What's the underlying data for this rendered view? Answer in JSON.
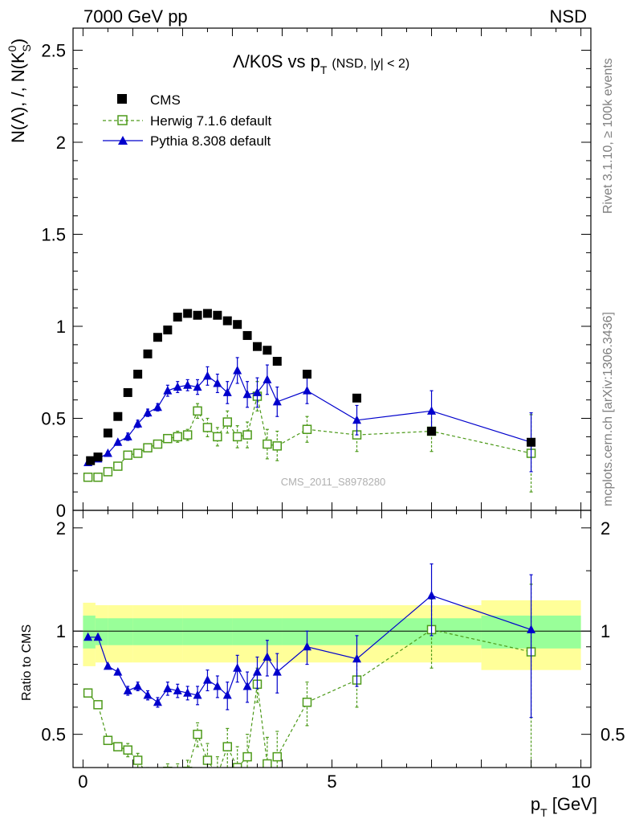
{
  "header": {
    "left": "7000 GeV pp",
    "right": "NSD"
  },
  "side_text": {
    "top": "Rivet 3.1.10, ≥ 100k events",
    "bottom": "mcplots.cern.ch [arXiv:1306.3436]"
  },
  "watermark": "CMS_2011_S8978280",
  "title": {
    "main": "Λ/K0S vs p",
    "sub": "T",
    "paren": "(NSD, |y| < 2)"
  },
  "ylabel": {
    "pre": "N(Λ), /, N(K",
    "sup": "0",
    "sub": "S",
    "post": ")"
  },
  "ratio_ylabel": "Ratio to CMS",
  "xlabel": {
    "pre": "p",
    "sub": "T",
    "post": " [GeV]"
  },
  "colors": {
    "cms": "#000000",
    "herwig": "#4d9a1a",
    "pythia": "#0000cc",
    "band_inner": "#99ff99",
    "band_outer": "#ffff99"
  },
  "chart_data": [
    {
      "type": "scatter",
      "xlim": [
        -0.2,
        10.2
      ],
      "ylim": [
        0,
        2.62
      ],
      "yticks": [
        0,
        0.5,
        1,
        1.5,
        2,
        2.5
      ],
      "ytick_labels": [
        "0",
        "0.5",
        "1",
        "1.5",
        "2",
        "2.5"
      ],
      "series": [
        {
          "name": "CMS",
          "x": [
            0.15,
            0.3,
            0.5,
            0.7,
            0.9,
            1.1,
            1.3,
            1.5,
            1.7,
            1.9,
            2.1,
            2.3,
            2.5,
            2.7,
            2.9,
            3.1,
            3.3,
            3.5,
            3.7,
            3.9,
            4.5,
            5.5,
            7.0,
            9.0
          ],
          "y": [
            0.27,
            0.29,
            0.42,
            0.51,
            0.64,
            0.74,
            0.85,
            0.94,
            0.98,
            1.05,
            1.07,
            1.06,
            1.07,
            1.06,
            1.03,
            1.01,
            0.95,
            0.89,
            0.87,
            0.81,
            0.74,
            0.61,
            0.43,
            0.37
          ]
        },
        {
          "name": "Herwig 7.1.6 default",
          "x": [
            0.1,
            0.3,
            0.5,
            0.7,
            0.9,
            1.1,
            1.3,
            1.5,
            1.7,
            1.9,
            2.1,
            2.3,
            2.5,
            2.7,
            2.9,
            3.1,
            3.3,
            3.5,
            3.7,
            3.9,
            4.5,
            5.5,
            7.0,
            9.0
          ],
          "y": [
            0.18,
            0.18,
            0.21,
            0.24,
            0.3,
            0.31,
            0.34,
            0.36,
            0.39,
            0.4,
            0.41,
            0.54,
            0.45,
            0.4,
            0.48,
            0.4,
            0.41,
            0.62,
            0.36,
            0.35,
            0.44,
            0.41,
            0.43,
            0.31
          ],
          "yerr": [
            0.01,
            0.01,
            0.01,
            0.01,
            0.02,
            0.02,
            0.02,
            0.02,
            0.02,
            0.03,
            0.03,
            0.04,
            0.05,
            0.05,
            0.06,
            0.06,
            0.07,
            0.08,
            0.08,
            0.08,
            0.07,
            0.09,
            0.11,
            0.21
          ]
        },
        {
          "name": "Pythia 8.308 default",
          "x": [
            0.1,
            0.3,
            0.5,
            0.7,
            0.9,
            1.1,
            1.3,
            1.5,
            1.7,
            1.9,
            2.1,
            2.3,
            2.5,
            2.7,
            2.9,
            3.1,
            3.3,
            3.5,
            3.7,
            3.9,
            4.5,
            5.5,
            7.0,
            9.0
          ],
          "y": [
            0.26,
            0.28,
            0.31,
            0.37,
            0.4,
            0.47,
            0.53,
            0.56,
            0.65,
            0.67,
            0.68,
            0.67,
            0.73,
            0.69,
            0.64,
            0.76,
            0.63,
            0.64,
            0.71,
            0.59,
            0.65,
            0.49,
            0.54,
            0.37
          ],
          "yerr": [
            0.01,
            0.01,
            0.01,
            0.01,
            0.02,
            0.02,
            0.02,
            0.02,
            0.03,
            0.03,
            0.03,
            0.04,
            0.05,
            0.05,
            0.06,
            0.07,
            0.07,
            0.08,
            0.08,
            0.08,
            0.07,
            0.08,
            0.11,
            0.16
          ]
        }
      ],
      "legend": {
        "position": "top-left"
      }
    },
    {
      "type": "scatter",
      "ylabel": "Ratio to CMS",
      "xlabel": "p_T [GeV]",
      "xlim": [
        -0.2,
        10.2
      ],
      "ylim": [
        0.4,
        2.25
      ],
      "log_y": true,
      "xticks": [
        0,
        5,
        10
      ],
      "xtick_labels": [
        "0",
        "5",
        "10"
      ],
      "yticks": [
        0.5,
        1,
        2
      ],
      "ytick_labels": [
        "0.5",
        "1",
        "2"
      ],
      "reference_line": 1,
      "band_edges": [
        0,
        0.25,
        0.5,
        1,
        2,
        3,
        4,
        5,
        6,
        7,
        8,
        10
      ],
      "band_inner": [
        0.11,
        0.09,
        0.09,
        0.09,
        0.09,
        0.09,
        0.09,
        0.09,
        0.09,
        0.09,
        0.11
      ],
      "band_outer": [
        0.21,
        0.19,
        0.19,
        0.19,
        0.19,
        0.19,
        0.19,
        0.19,
        0.19,
        0.19,
        0.23
      ],
      "series": [
        {
          "name": "Herwig 7.1.6 default",
          "x": [
            0.1,
            0.3,
            0.5,
            0.7,
            0.9,
            1.1,
            1.3,
            1.5,
            1.7,
            1.9,
            2.1,
            2.3,
            2.5,
            2.7,
            2.9,
            3.1,
            3.3,
            3.5,
            3.7,
            3.9,
            4.5,
            5.5,
            7.0,
            9.0
          ],
          "y": [
            0.66,
            0.61,
            0.48,
            0.46,
            0.45,
            0.42,
            0.38,
            0.38,
            0.39,
            0.38,
            0.39,
            0.5,
            0.42,
            0.38,
            0.46,
            0.4,
            0.43,
            0.7,
            0.41,
            0.43,
            0.62,
            0.72,
            1.01,
            0.87
          ],
          "yerr": [
            0.01,
            0.01,
            0.01,
            0.01,
            0.02,
            0.02,
            0.02,
            0.02,
            0.02,
            0.03,
            0.03,
            0.04,
            0.05,
            0.05,
            0.06,
            0.06,
            0.07,
            0.08,
            0.08,
            0.08,
            0.09,
            0.12,
            0.23,
            0.5
          ]
        },
        {
          "name": "Pythia 8.308 default",
          "x": [
            0.1,
            0.3,
            0.5,
            0.7,
            0.9,
            1.1,
            1.3,
            1.5,
            1.7,
            1.9,
            2.1,
            2.3,
            2.5,
            2.7,
            2.9,
            3.1,
            3.3,
            3.5,
            3.7,
            3.9,
            4.5,
            5.5,
            7.0,
            9.0
          ],
          "y": [
            0.96,
            0.96,
            0.79,
            0.76,
            0.67,
            0.69,
            0.65,
            0.62,
            0.68,
            0.67,
            0.66,
            0.65,
            0.72,
            0.69,
            0.65,
            0.78,
            0.69,
            0.76,
            0.84,
            0.76,
            0.9,
            0.83,
            1.27,
            1.01
          ],
          "yerr": [
            0.01,
            0.01,
            0.01,
            0.01,
            0.02,
            0.02,
            0.02,
            0.02,
            0.03,
            0.03,
            0.03,
            0.04,
            0.05,
            0.05,
            0.06,
            0.07,
            0.07,
            0.08,
            0.1,
            0.1,
            0.1,
            0.14,
            0.3,
            0.45
          ]
        }
      ]
    }
  ]
}
